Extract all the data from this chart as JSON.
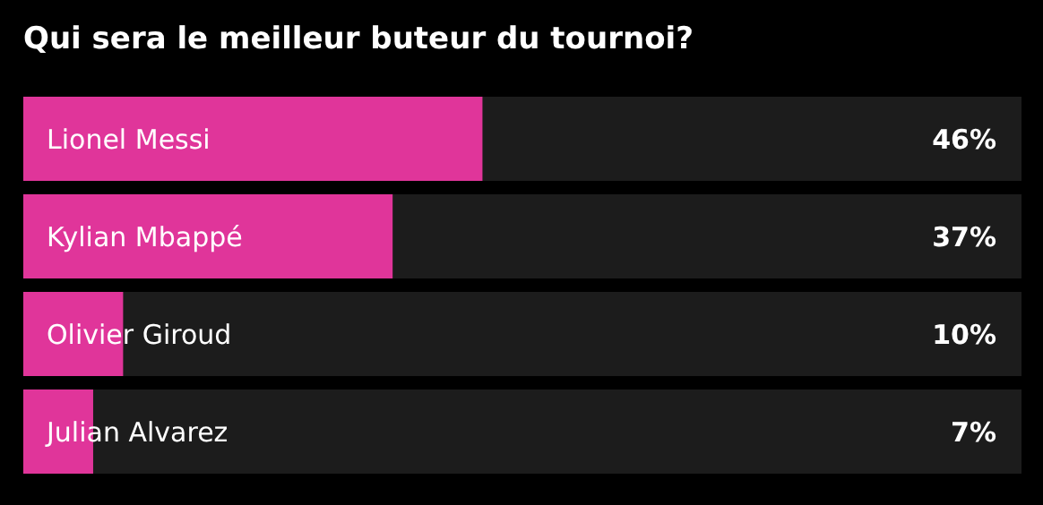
{
  "chart_data": {
    "type": "bar",
    "orientation": "horizontal",
    "title": "Qui sera le meilleur buteur du tournoi?",
    "categories": [
      "Lionel Messi",
      "Kylian Mbappé",
      "Olivier Giroud",
      "Julian Alvarez"
    ],
    "values": [
      46,
      37,
      10,
      7
    ],
    "value_labels": [
      "46%",
      "37%",
      "10%",
      "7%"
    ],
    "color": "#e0359a",
    "xlim": [
      0,
      100
    ],
    "tick_labels": false
  }
}
